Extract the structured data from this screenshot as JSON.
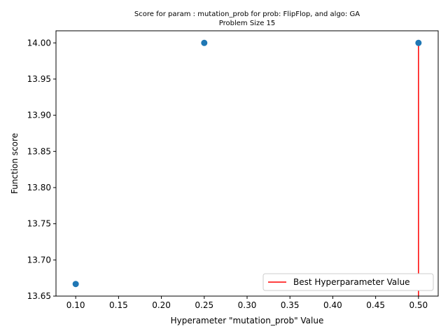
{
  "chart_data": {
    "type": "scatter",
    "title": "Score for param : mutation_prob for prob: FlipFlop, and algo: GA",
    "subtitle": "Problem Size 15",
    "xlabel": "Hyperameter \"mutation_prob\" Value",
    "ylabel": "Function score",
    "xlim": [
      0.077,
      0.523
    ],
    "ylim": [
      13.65,
      14.0167
    ],
    "x_ticks": [
      0.1,
      0.15,
      0.2,
      0.25,
      0.3,
      0.35,
      0.4,
      0.45,
      0.5
    ],
    "x_tick_labels": [
      "0.10",
      "0.15",
      "0.20",
      "0.25",
      "0.30",
      "0.35",
      "0.40",
      "0.45",
      "0.50"
    ],
    "y_ticks": [
      13.65,
      13.7,
      13.75,
      13.8,
      13.85,
      13.9,
      13.95,
      14.0
    ],
    "y_tick_labels": [
      "13.65",
      "13.70",
      "13.75",
      "13.80",
      "13.85",
      "13.90",
      "13.95",
      "14.00"
    ],
    "series": [
      {
        "x": [
          0.1,
          0.25,
          0.5
        ],
        "y": [
          13.6667,
          14.0,
          14.0
        ],
        "color": "#1f77b4"
      }
    ],
    "best_line": {
      "x": 0.5,
      "y_from": 13.65,
      "y_to": 14.0,
      "color": "#ff0000",
      "label": "Best Hyperparameter Value"
    },
    "legend": {
      "position": "lower-right"
    },
    "grid": false
  }
}
